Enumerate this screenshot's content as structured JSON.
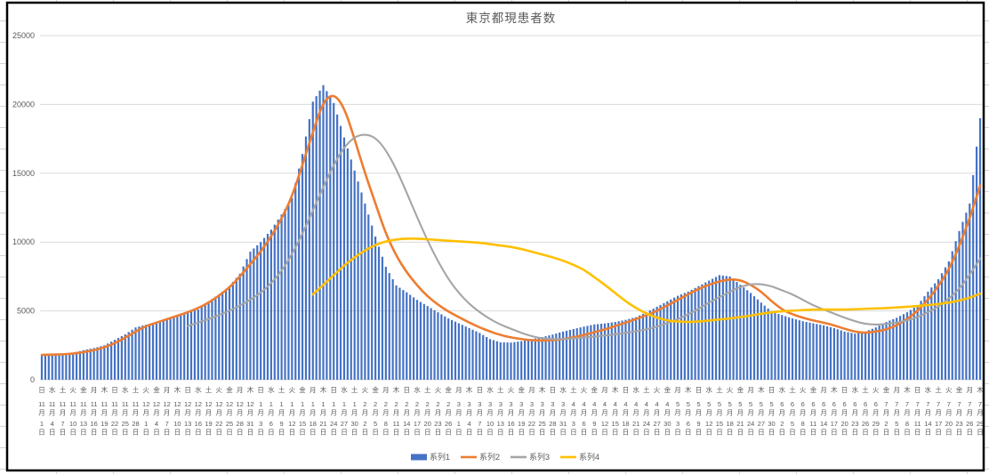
{
  "title": "東京都現患者数",
  "colors": {
    "bar_blue": "#4472C4",
    "line_orange": "#ED7D31",
    "line_gray": "#A5A5A5",
    "line_yellow": "#FFC000",
    "gridline": "#D9D9D9",
    "axis_text": "#595959",
    "chart_border": "#000000"
  },
  "chart_data": {
    "type": "combo bar+line",
    "title": "東京都現患者数",
    "grid": "horizontal gridlines on",
    "y_axis": {
      "min": 0,
      "max": 25000,
      "tick_step": 5000,
      "tick_labels": [
        "0",
        "5000",
        "10000",
        "15000",
        "20000",
        "25000"
      ]
    },
    "x_tick_interval_days": 3,
    "x_labels": [
      "日|11|1",
      "水|11|4",
      "土|11|7",
      "火|11|10",
      "金|11|13",
      "月|11|16",
      "木|11|19",
      "日|11|22",
      "水|11|25",
      "土|11|28",
      "火|12|1",
      "金|12|4",
      "月|12|7",
      "木|12|10",
      "日|12|13",
      "水|12|16",
      "土|12|19",
      "火|12|22",
      "金|12|25",
      "月|12|28",
      "木|12|31",
      "日|1|3",
      "水|1|6",
      "土|1|9",
      "火|1|12",
      "金|1|15",
      "月|1|18",
      "木|1|21",
      "日|1|24",
      "水|1|27",
      "土|1|30",
      "火|2|2",
      "金|2|5",
      "月|2|8",
      "木|2|11",
      "日|2|14",
      "水|2|17",
      "土|2|20",
      "火|2|23",
      "金|2|26",
      "月|3|1",
      "木|3|4",
      "日|3|7",
      "水|3|10",
      "土|3|13",
      "火|3|16",
      "金|3|19",
      "月|3|22",
      "木|3|25",
      "日|3|28",
      "水|3|31",
      "土|4|3",
      "火|4|6",
      "金|4|9",
      "月|4|12",
      "木|4|15",
      "日|4|18",
      "水|4|21",
      "土|4|24",
      "火|4|27",
      "金|4|30",
      "月|5|3",
      "木|5|6",
      "日|5|9",
      "水|5|12",
      "土|5|15",
      "火|5|18",
      "金|5|21",
      "月|5|24",
      "木|5|27",
      "日|5|30",
      "水|6|2",
      "土|6|5",
      "火|6|8",
      "金|6|11",
      "月|6|14",
      "木|6|17",
      "日|6|20",
      "水|6|23",
      "土|6|26",
      "火|6|29",
      "金|7|2",
      "月|7|5",
      "木|7|8",
      "日|7|11",
      "水|7|14",
      "土|7|17",
      "火|7|20",
      "金|7|23",
      "月|7|26",
      "木|7|29"
    ],
    "series": [
      {
        "name": "系列1",
        "type": "bar",
        "color": "#4472C4",
        "values": [
          1750,
          1800,
          1900,
          1950,
          2150,
          2300,
          2500,
          2900,
          3300,
          3800,
          4000,
          4200,
          4400,
          4700,
          4900,
          5100,
          5700,
          6200,
          6800,
          7700,
          9300,
          10000,
          10900,
          12000,
          13200,
          16400,
          20200,
          21400,
          20100,
          17600,
          15200,
          12800,
          10400,
          8200,
          6850,
          6350,
          5800,
          5350,
          4900,
          4450,
          4100,
          3750,
          3400,
          2950,
          2720,
          2700,
          2800,
          2950,
          3100,
          3280,
          3500,
          3680,
          3860,
          4020,
          4090,
          4200,
          4350,
          4550,
          4900,
          5300,
          5700,
          6100,
          6400,
          6800,
          7200,
          7600,
          7500,
          6900,
          6300,
          5600,
          4950,
          4700,
          4450,
          4250,
          4100,
          3950,
          3750,
          3500,
          3350,
          3500,
          3800,
          4200,
          4500,
          4900,
          5400,
          6400,
          7300,
          8600,
          10800,
          12800,
          19000
        ]
      },
      {
        "name": "系列2",
        "type": "line",
        "color": "#ED7D31",
        "values": [
          1800,
          1820,
          1850,
          1900,
          2000,
          2150,
          2350,
          2650,
          3050,
          3500,
          3900,
          4150,
          4400,
          4650,
          4900,
          5200,
          5600,
          6100,
          6700,
          7500,
          8400,
          9300,
          10400,
          11700,
          13300,
          15600,
          18000,
          20200,
          20800,
          19800,
          17500,
          15000,
          12800,
          10600,
          9000,
          7800,
          6850,
          6050,
          5450,
          4950,
          4550,
          4150,
          3800,
          3500,
          3250,
          3070,
          2950,
          2870,
          2840,
          2880,
          2950,
          3080,
          3250,
          3450,
          3650,
          3900,
          4150,
          4400,
          4700,
          5000,
          5400,
          5800,
          6200,
          6600,
          6900,
          7150,
          7300,
          7250,
          6900,
          6400,
          5700,
          5100,
          4750,
          4500,
          4300,
          4150,
          3950,
          3700,
          3480,
          3400,
          3500,
          3650,
          3950,
          4400,
          5000,
          5800,
          6800,
          8000,
          9700,
          11700,
          14100
        ]
      },
      {
        "name": "系列3",
        "type": "line",
        "color": "#A5A5A5",
        "values": [
          null,
          null,
          null,
          null,
          null,
          null,
          null,
          null,
          null,
          null,
          null,
          null,
          null,
          null,
          3900,
          4150,
          4400,
          4700,
          5000,
          5400,
          5800,
          6300,
          7000,
          7900,
          9100,
          10600,
          12300,
          14000,
          15600,
          16900,
          17650,
          17850,
          17600,
          16700,
          15300,
          13600,
          11800,
          10100,
          8600,
          7300,
          6300,
          5500,
          4900,
          4400,
          4000,
          3700,
          3400,
          3150,
          3000,
          2950,
          2960,
          3000,
          3060,
          3130,
          3210,
          3300,
          3400,
          3520,
          3650,
          3850,
          4100,
          4400,
          4750,
          5150,
          5600,
          6000,
          6400,
          6750,
          6950,
          6950,
          6800,
          6500,
          6200,
          5800,
          5400,
          5100,
          4800,
          4500,
          4250,
          4050,
          4000,
          4050,
          4150,
          4300,
          4550,
          4900,
          5300,
          5900,
          6600,
          7600,
          8800
        ]
      },
      {
        "name": "系列4",
        "type": "line",
        "color": "#FFC000",
        "values": [
          null,
          null,
          null,
          null,
          null,
          null,
          null,
          null,
          null,
          null,
          null,
          null,
          null,
          null,
          null,
          null,
          null,
          null,
          null,
          null,
          null,
          null,
          null,
          null,
          null,
          null,
          6200,
          6900,
          7600,
          8300,
          8900,
          9400,
          9800,
          10050,
          10200,
          10250,
          10250,
          10200,
          10150,
          10100,
          10050,
          10000,
          9950,
          9850,
          9750,
          9650,
          9500,
          9300,
          9100,
          8900,
          8650,
          8350,
          8000,
          7450,
          6900,
          6300,
          5700,
          5200,
          4800,
          4500,
          4300,
          4220,
          4200,
          4220,
          4300,
          4380,
          4450,
          4550,
          4650,
          4800,
          4900,
          4970,
          5020,
          5060,
          5100,
          5100,
          5100,
          5100,
          5120,
          5150,
          5180,
          5200,
          5250,
          5300,
          5350,
          5420,
          5500,
          5600,
          5750,
          5950,
          6250
        ]
      }
    ],
    "legend": {
      "position": "bottom",
      "entries": [
        "系列1",
        "系列2",
        "系列3",
        "系列4"
      ]
    },
    "note": "values read at the 3-day x-axis ticks; daily bars drawn by linear interpolation between ticks"
  }
}
